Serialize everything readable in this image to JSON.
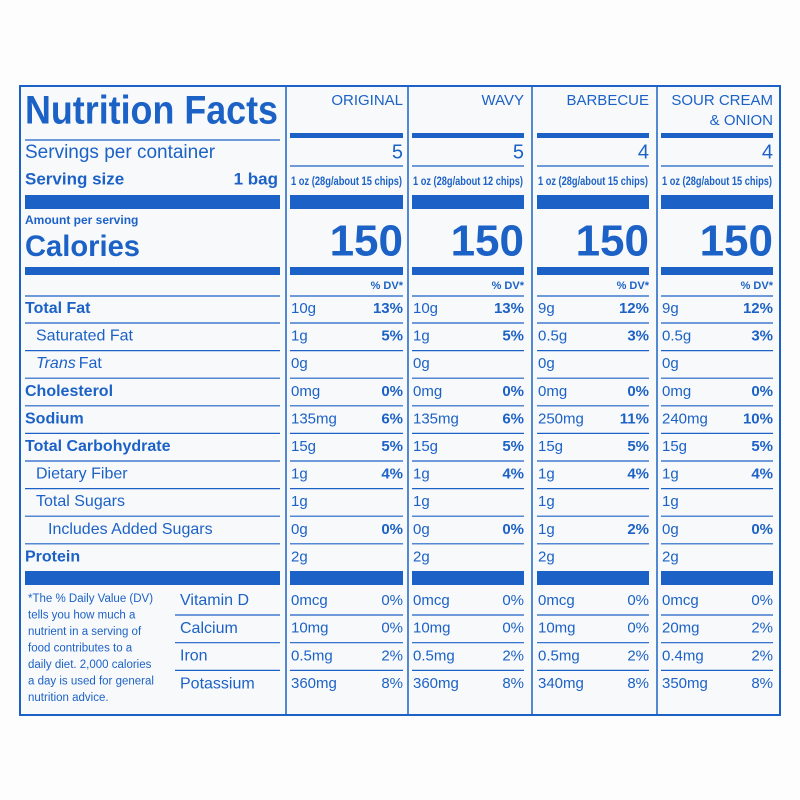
{
  "title": "Nutrition Facts",
  "servings_label": "Servings per container",
  "serving_size_label": "Serving size",
  "serving_size_left": "1 bag",
  "amount_per_serving": "Amount per serving",
  "calories_label": "Calories",
  "products": [
    {
      "name_lines": [
        "ORIGINAL"
      ],
      "servings": 5,
      "serving_size": "1 oz (28g/about 15 chips)",
      "calories": 150,
      "dv_header": "% DV*"
    },
    {
      "name_lines": [
        "WAVY"
      ],
      "servings": 5,
      "serving_size": "1 oz (28g/about 12 chips)",
      "calories": 150,
      "dv_header": "% DV*"
    },
    {
      "name_lines": [
        "BARBECUE"
      ],
      "servings": 4,
      "serving_size": "1 oz (28g/about 15 chips)",
      "calories": 150,
      "dv_header": "% DV*"
    },
    {
      "name_lines": [
        "SOUR CREAM",
        "& ONION"
      ],
      "servings": 4,
      "serving_size": "1 oz (28g/about 15 chips)",
      "calories": 150,
      "dv_header": "% DV*"
    }
  ],
  "nutrients": [
    {
      "label": "Total Fat",
      "bold": true,
      "indent": 0,
      "values": [
        {
          "amount": "10g",
          "dv": "13%"
        },
        {
          "amount": "10g",
          "dv": "13%"
        },
        {
          "amount": "9g",
          "dv": "12%"
        },
        {
          "amount": "9g",
          "dv": "12%"
        }
      ]
    },
    {
      "label": "Saturated Fat",
      "bold": false,
      "indent": 1,
      "values": [
        {
          "amount": "1g",
          "dv": "5%"
        },
        {
          "amount": "1g",
          "dv": "5%"
        },
        {
          "amount": "0.5g",
          "dv": "3%"
        },
        {
          "amount": "0.5g",
          "dv": "3%"
        }
      ]
    },
    {
      "label_italic": "Trans",
      "label": "Fat",
      "bold": false,
      "indent": 1,
      "values": [
        {
          "amount": "0g"
        },
        {
          "amount": "0g"
        },
        {
          "amount": "0g"
        },
        {
          "amount": "0g"
        }
      ]
    },
    {
      "label": "Cholesterol",
      "bold": true,
      "indent": 0,
      "values": [
        {
          "amount": "0mg",
          "dv": "0%"
        },
        {
          "amount": "0mg",
          "dv": "0%"
        },
        {
          "amount": "0mg",
          "dv": "0%"
        },
        {
          "amount": "0mg",
          "dv": "0%"
        }
      ]
    },
    {
      "label": "Sodium",
      "bold": true,
      "indent": 0,
      "values": [
        {
          "amount": "135mg",
          "dv": "6%"
        },
        {
          "amount": "135mg",
          "dv": "6%"
        },
        {
          "amount": "250mg",
          "dv": "11%"
        },
        {
          "amount": "240mg",
          "dv": "10%"
        }
      ]
    },
    {
      "label": "Total Carbohydrate",
      "bold": true,
      "indent": 0,
      "values": [
        {
          "amount": "15g",
          "dv": "5%"
        },
        {
          "amount": "15g",
          "dv": "5%"
        },
        {
          "amount": "15g",
          "dv": "5%"
        },
        {
          "amount": "15g",
          "dv": "5%"
        }
      ]
    },
    {
      "label": "Dietary Fiber",
      "bold": false,
      "indent": 1,
      "values": [
        {
          "amount": "1g",
          "dv": "4%"
        },
        {
          "amount": "1g",
          "dv": "4%"
        },
        {
          "amount": "1g",
          "dv": "4%"
        },
        {
          "amount": "1g",
          "dv": "4%"
        }
      ]
    },
    {
      "label": "Total Sugars",
      "bold": false,
      "indent": 1,
      "values": [
        {
          "amount": "1g"
        },
        {
          "amount": "1g"
        },
        {
          "amount": "1g"
        },
        {
          "amount": "1g"
        }
      ]
    },
    {
      "label": "Includes Added Sugars",
      "bold": false,
      "indent": 2,
      "values": [
        {
          "amount": "0g",
          "dv": "0%"
        },
        {
          "amount": "0g",
          "dv": "0%"
        },
        {
          "amount": "1g",
          "dv": "2%"
        },
        {
          "amount": "0g",
          "dv": "0%"
        }
      ]
    },
    {
      "label": "Protein",
      "bold": true,
      "indent": 0,
      "values": [
        {
          "amount": "2g"
        },
        {
          "amount": "2g"
        },
        {
          "amount": "2g"
        },
        {
          "amount": "2g"
        }
      ]
    }
  ],
  "vitamins": [
    {
      "label": "Vitamin D",
      "values": [
        {
          "amount": "0mcg",
          "dv": "0%"
        },
        {
          "amount": "0mcg",
          "dv": "0%"
        },
        {
          "amount": "0mcg",
          "dv": "0%"
        },
        {
          "amount": "0mcg",
          "dv": "0%"
        }
      ]
    },
    {
      "label": "Calcium",
      "values": [
        {
          "amount": "10mg",
          "dv": "0%"
        },
        {
          "amount": "10mg",
          "dv": "0%"
        },
        {
          "amount": "10mg",
          "dv": "0%"
        },
        {
          "amount": "20mg",
          "dv": "2%"
        }
      ]
    },
    {
      "label": "Iron",
      "values": [
        {
          "amount": "0.5mg",
          "dv": "2%"
        },
        {
          "amount": "0.5mg",
          "dv": "2%"
        },
        {
          "amount": "0.5mg",
          "dv": "2%"
        },
        {
          "amount": "0.4mg",
          "dv": "2%"
        }
      ]
    },
    {
      "label": "Potassium",
      "values": [
        {
          "amount": "360mg",
          "dv": "8%"
        },
        {
          "amount": "360mg",
          "dv": "8%"
        },
        {
          "amount": "340mg",
          "dv": "8%"
        },
        {
          "amount": "350mg",
          "dv": "8%"
        }
      ]
    }
  ],
  "footnote_lines": [
    "*The % Daily Value (DV)",
    "tells you how much a",
    "nutrient in a serving of",
    "food contributes to a",
    "daily diet. 2,000 calories",
    "a day is used for general",
    "nutrition advice."
  ]
}
